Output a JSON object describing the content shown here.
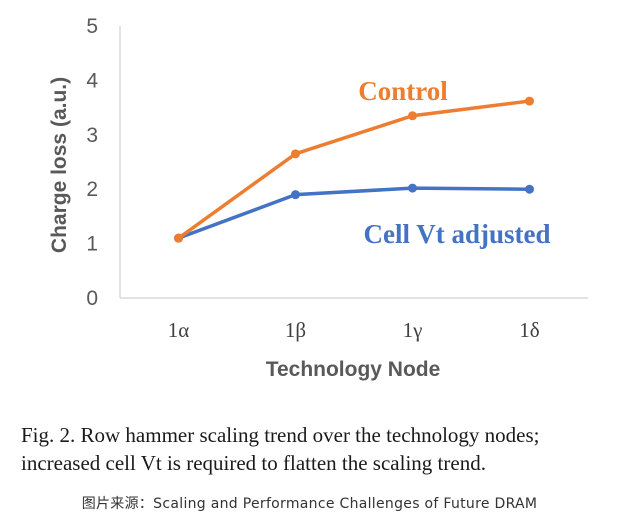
{
  "chart_data": {
    "type": "line",
    "categories": [
      "1α",
      "1β",
      "1γ",
      "1δ"
    ],
    "series": [
      {
        "name": "Control",
        "values": [
          1.1,
          2.65,
          3.35,
          3.62
        ],
        "color": "#ED7D31"
      },
      {
        "name": "Cell Vt adjusted",
        "values": [
          1.1,
          1.9,
          2.02,
          2.0
        ],
        "color": "#4472C4"
      }
    ],
    "title": "",
    "xlabel": "Technology Node",
    "ylabel": "Charge loss (a.u.)",
    "ylim": [
      0,
      5
    ],
    "yticks": [
      "0",
      "1",
      "2",
      "3",
      "4",
      "5"
    ],
    "grid": false,
    "legend": "inline labels"
  },
  "caption": {
    "line1": "Fig. 2. Row hammer scaling trend over the technology nodes;",
    "line2": "increased cell Vt is required to flatten the scaling trend."
  },
  "source": "图片来源：Scaling and Performance Challenges of Future DRAM"
}
